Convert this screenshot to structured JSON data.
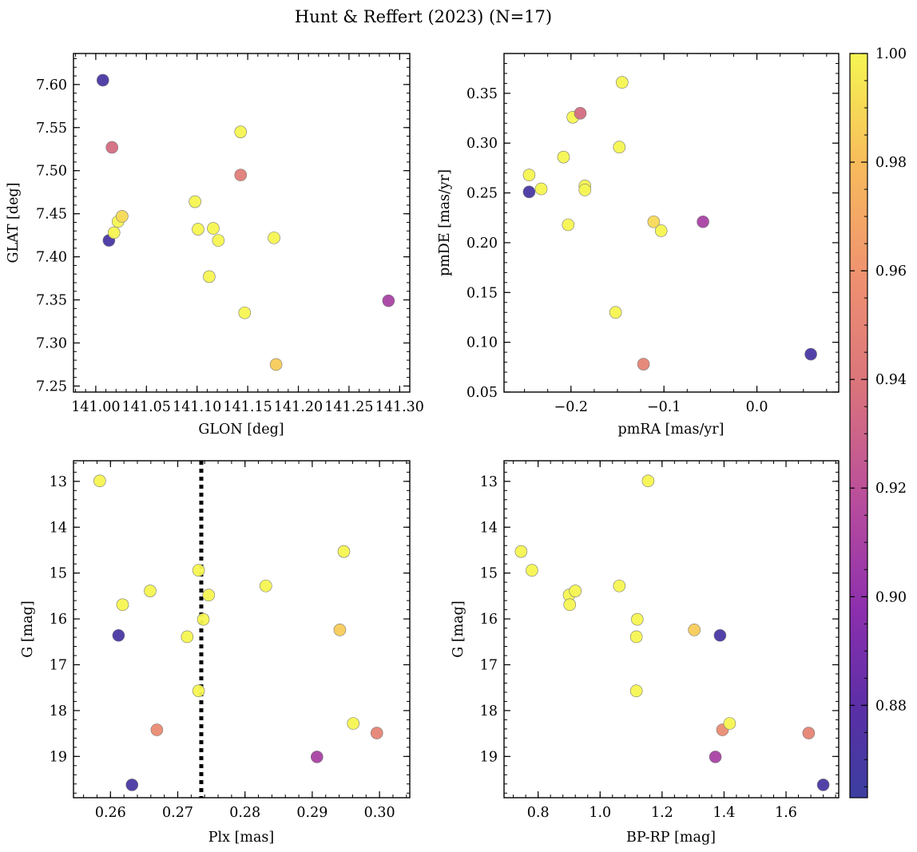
{
  "figure": {
    "title": "Hunt & Reffert (2023) (N=17)"
  },
  "colorbar": {
    "colormap": "plasma",
    "min": 0.863,
    "max": 1.0,
    "ticks": [
      "0.88",
      "0.90",
      "0.92",
      "0.94",
      "0.96",
      "0.98",
      "1.00"
    ]
  },
  "chart_data": [
    {
      "type": "scatter",
      "xlabel": "GLON [deg]",
      "ylabel": "GLAT [deg]",
      "xlim": [
        140.978,
        141.31
      ],
      "ylim": [
        7.243,
        7.636
      ],
      "xticks": [
        "141.00",
        "141.05",
        "141.10",
        "141.15",
        "141.20",
        "141.25",
        "141.30"
      ],
      "yticks": [
        "7.25",
        "7.30",
        "7.35",
        "7.40",
        "7.45",
        "7.50",
        "7.55",
        "7.60"
      ],
      "points": [
        {
          "x": 141.007,
          "y": 7.605,
          "c": 0.87
        },
        {
          "x": 141.016,
          "y": 7.527,
          "c": 0.935
        },
        {
          "x": 141.013,
          "y": 7.419,
          "c": 0.87
        },
        {
          "x": 141.018,
          "y": 7.428,
          "c": 1.0
        },
        {
          "x": 141.022,
          "y": 7.441,
          "c": 1.0
        },
        {
          "x": 141.026,
          "y": 7.447,
          "c": 0.99
        },
        {
          "x": 141.098,
          "y": 7.464,
          "c": 1.0
        },
        {
          "x": 141.101,
          "y": 7.432,
          "c": 1.0
        },
        {
          "x": 141.116,
          "y": 7.433,
          "c": 1.0
        },
        {
          "x": 141.112,
          "y": 7.377,
          "c": 1.0
        },
        {
          "x": 141.121,
          "y": 7.419,
          "c": 1.0
        },
        {
          "x": 141.143,
          "y": 7.545,
          "c": 1.0
        },
        {
          "x": 141.143,
          "y": 7.495,
          "c": 0.945
        },
        {
          "x": 141.147,
          "y": 7.335,
          "c": 1.0
        },
        {
          "x": 141.176,
          "y": 7.422,
          "c": 1.0
        },
        {
          "x": 141.178,
          "y": 7.275,
          "c": 0.985
        },
        {
          "x": 141.289,
          "y": 7.349,
          "c": 0.91
        }
      ]
    },
    {
      "type": "scatter",
      "xlabel": "pmRA [mas/yr]",
      "ylabel": "pmDE [mas/yr]",
      "xlim": [
        -0.272,
        0.088
      ],
      "ylim": [
        0.05,
        0.39
      ],
      "xticks": [
        "−0.2",
        "−0.1",
        "0.0"
      ],
      "yticks": [
        "0.05",
        "0.10",
        "0.15",
        "0.20",
        "0.25",
        "0.30",
        "0.35"
      ],
      "points": [
        {
          "x": -0.245,
          "y": 0.268,
          "c": 1.0
        },
        {
          "x": -0.245,
          "y": 0.251,
          "c": 0.87
        },
        {
          "x": -0.232,
          "y": 0.254,
          "c": 1.0
        },
        {
          "x": -0.208,
          "y": 0.286,
          "c": 1.0
        },
        {
          "x": -0.203,
          "y": 0.218,
          "c": 1.0
        },
        {
          "x": -0.198,
          "y": 0.326,
          "c": 1.0
        },
        {
          "x": -0.19,
          "y": 0.33,
          "c": 0.935
        },
        {
          "x": -0.185,
          "y": 0.257,
          "c": 1.0
        },
        {
          "x": -0.185,
          "y": 0.253,
          "c": 1.0
        },
        {
          "x": -0.152,
          "y": 0.13,
          "c": 1.0
        },
        {
          "x": -0.148,
          "y": 0.296,
          "c": 1.0
        },
        {
          "x": -0.145,
          "y": 0.361,
          "c": 1.0
        },
        {
          "x": -0.122,
          "y": 0.078,
          "c": 0.95
        },
        {
          "x": -0.111,
          "y": 0.221,
          "c": 0.99
        },
        {
          "x": -0.103,
          "y": 0.212,
          "c": 1.0
        },
        {
          "x": -0.058,
          "y": 0.221,
          "c": 0.91
        },
        {
          "x": 0.058,
          "y": 0.088,
          "c": 0.87
        }
      ]
    },
    {
      "type": "scatter",
      "xlabel": "Plx [mas]",
      "ylabel": "G [mag]",
      "xlim": [
        0.2545,
        0.3045
      ],
      "ylim": [
        19.9,
        12.55
      ],
      "y_inverted": true,
      "xticks": [
        "0.26",
        "0.27",
        "0.28",
        "0.29",
        "0.30"
      ],
      "yticks": [
        "13",
        "14",
        "15",
        "16",
        "17",
        "18",
        "19"
      ],
      "reference_line": {
        "axis": "x",
        "value": 0.2735,
        "style": "dotted",
        "color": "#000000"
      },
      "points": [
        {
          "x": 0.2584,
          "y": 12.99,
          "c": 1.0
        },
        {
          "x": 0.2612,
          "y": 16.36,
          "c": 0.87
        },
        {
          "x": 0.2618,
          "y": 15.69,
          "c": 1.0
        },
        {
          "x": 0.2632,
          "y": 19.62,
          "c": 0.87
        },
        {
          "x": 0.2659,
          "y": 15.39,
          "c": 1.0
        },
        {
          "x": 0.2669,
          "y": 18.42,
          "c": 0.955
        },
        {
          "x": 0.2714,
          "y": 16.39,
          "c": 1.0
        },
        {
          "x": 0.2731,
          "y": 14.94,
          "c": 1.0
        },
        {
          "x": 0.2731,
          "y": 17.57,
          "c": 1.0
        },
        {
          "x": 0.2738,
          "y": 16.01,
          "c": 1.0
        },
        {
          "x": 0.2746,
          "y": 15.48,
          "c": 1.0
        },
        {
          "x": 0.2831,
          "y": 15.28,
          "c": 1.0
        },
        {
          "x": 0.2907,
          "y": 19.01,
          "c": 0.91
        },
        {
          "x": 0.2941,
          "y": 16.24,
          "c": 0.985
        },
        {
          "x": 0.2947,
          "y": 14.53,
          "c": 1.0
        },
        {
          "x": 0.2961,
          "y": 18.28,
          "c": 1.0
        },
        {
          "x": 0.2996,
          "y": 18.49,
          "c": 0.95
        }
      ]
    },
    {
      "type": "scatter",
      "xlabel": "BP-RP [mag]",
      "ylabel": "G [mag]",
      "xlim": [
        0.69,
        1.77
      ],
      "ylim": [
        19.9,
        12.55
      ],
      "y_inverted": true,
      "xticks": [
        "0.8",
        "1.0",
        "1.2",
        "1.4",
        "1.6"
      ],
      "yticks": [
        "13",
        "14",
        "15",
        "16",
        "17",
        "18",
        "19"
      ],
      "points": [
        {
          "x": 0.745,
          "y": 14.53,
          "c": 1.0
        },
        {
          "x": 0.78,
          "y": 14.94,
          "c": 1.0
        },
        {
          "x": 0.9,
          "y": 15.48,
          "c": 1.0
        },
        {
          "x": 0.902,
          "y": 15.69,
          "c": 1.0
        },
        {
          "x": 0.92,
          "y": 15.39,
          "c": 1.0
        },
        {
          "x": 1.062,
          "y": 15.28,
          "c": 1.0
        },
        {
          "x": 1.12,
          "y": 16.01,
          "c": 1.0
        },
        {
          "x": 1.117,
          "y": 16.39,
          "c": 1.0
        },
        {
          "x": 1.117,
          "y": 17.57,
          "c": 1.0
        },
        {
          "x": 1.155,
          "y": 12.99,
          "c": 1.0
        },
        {
          "x": 1.304,
          "y": 16.24,
          "c": 0.985
        },
        {
          "x": 1.372,
          "y": 19.01,
          "c": 0.91
        },
        {
          "x": 1.387,
          "y": 16.36,
          "c": 0.87
        },
        {
          "x": 1.395,
          "y": 18.42,
          "c": 0.955
        },
        {
          "x": 1.418,
          "y": 18.28,
          "c": 1.0
        },
        {
          "x": 1.673,
          "y": 18.49,
          "c": 0.95
        },
        {
          "x": 1.72,
          "y": 19.62,
          "c": 0.87
        }
      ]
    }
  ]
}
